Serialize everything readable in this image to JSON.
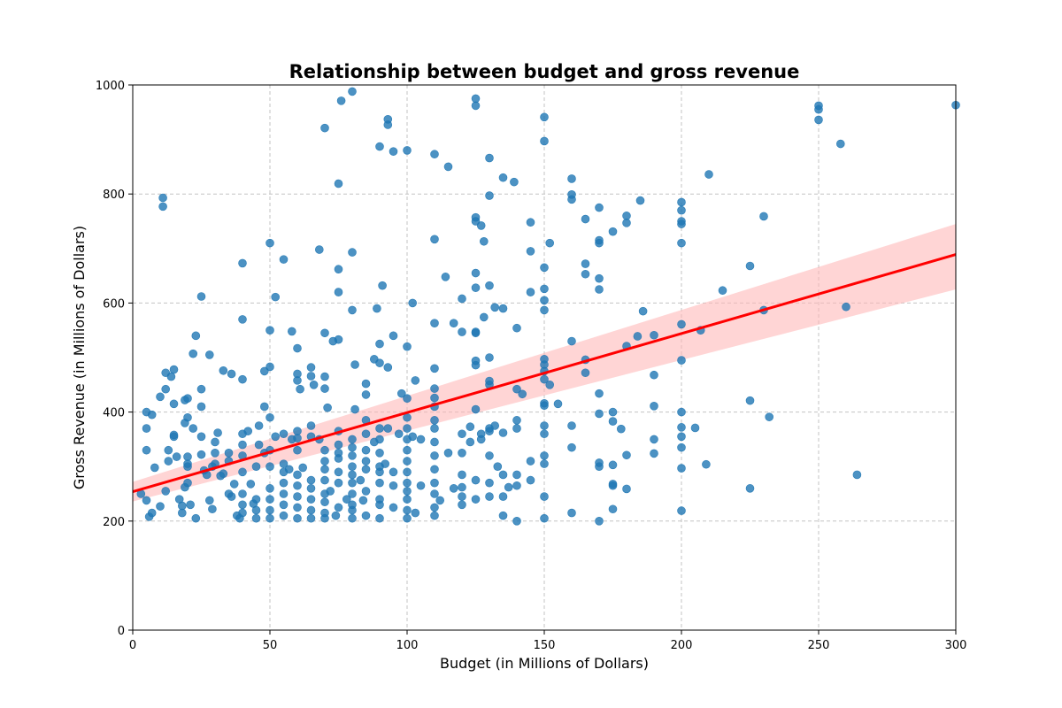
{
  "colors": {
    "points": "#1f77b4",
    "regression_line": "#ff0000",
    "confidence_band": "#ffb3b3",
    "grid": "#b0b0b0",
    "background": "#ffffff"
  },
  "chart_data": {
    "type": "scatter",
    "title": "Relationship between budget and gross revenue",
    "xlabel": "Budget (in Millions of Dollars)",
    "ylabel": "Gross Revenue (in Millions of Dollars)",
    "xlim": [
      0,
      300
    ],
    "ylim": [
      0,
      1000
    ],
    "x_ticks": [
      0,
      50,
      100,
      150,
      200,
      250,
      300
    ],
    "y_ticks": [
      0,
      200,
      400,
      600,
      800,
      1000
    ],
    "grid": true,
    "legend": "none",
    "regression": {
      "x": [
        0,
        300
      ],
      "y": [
        254,
        689
      ],
      "ci_upper": [
        272,
        745
      ],
      "ci_lower": [
        236,
        625
      ]
    },
    "points": [
      [
        11,
        793
      ],
      [
        11,
        777
      ],
      [
        40,
        673
      ],
      [
        25,
        612
      ],
      [
        50,
        710
      ],
      [
        55,
        680
      ],
      [
        52,
        611
      ],
      [
        70,
        921
      ],
      [
        76,
        971
      ],
      [
        80,
        988
      ],
      [
        75,
        819
      ],
      [
        68,
        698
      ],
      [
        80,
        693
      ],
      [
        75,
        662
      ],
      [
        75,
        620
      ],
      [
        80,
        587
      ],
      [
        90,
        887
      ],
      [
        95,
        878
      ],
      [
        93,
        937
      ],
      [
        93,
        927
      ],
      [
        100,
        880
      ],
      [
        91,
        632
      ],
      [
        89,
        590
      ],
      [
        102,
        600
      ],
      [
        110,
        873
      ],
      [
        115,
        850
      ],
      [
        110,
        717
      ],
      [
        114,
        648
      ],
      [
        120,
        608
      ],
      [
        125,
        975
      ],
      [
        125,
        962
      ],
      [
        130,
        866
      ],
      [
        125,
        757
      ],
      [
        125,
        750
      ],
      [
        127,
        742
      ],
      [
        128,
        713
      ],
      [
        125,
        655
      ],
      [
        130,
        632
      ],
      [
        125,
        628
      ],
      [
        130,
        797
      ],
      [
        135,
        830
      ],
      [
        139,
        822
      ],
      [
        145,
        748
      ],
      [
        145,
        695
      ],
      [
        145,
        620
      ],
      [
        150,
        941
      ],
      [
        150,
        897
      ],
      [
        152,
        710
      ],
      [
        150,
        665
      ],
      [
        150,
        626
      ],
      [
        150,
        605
      ],
      [
        150,
        587
      ],
      [
        160,
        828
      ],
      [
        160,
        799
      ],
      [
        160,
        790
      ],
      [
        165,
        754
      ],
      [
        165,
        672
      ],
      [
        165,
        653
      ],
      [
        170,
        775
      ],
      [
        170,
        715
      ],
      [
        170,
        710
      ],
      [
        170,
        645
      ],
      [
        170,
        625
      ],
      [
        175,
        731
      ],
      [
        180,
        760
      ],
      [
        180,
        747
      ],
      [
        185,
        788
      ],
      [
        200,
        785
      ],
      [
        200,
        770
      ],
      [
        200,
        750
      ],
      [
        200,
        745
      ],
      [
        200,
        710
      ],
      [
        210,
        836
      ],
      [
        215,
        623
      ],
      [
        225,
        668
      ],
      [
        230,
        759
      ],
      [
        250,
        962
      ],
      [
        250,
        955
      ],
      [
        250,
        936
      ],
      [
        258,
        892
      ],
      [
        260,
        593
      ],
      [
        300,
        963
      ],
      [
        5,
        400
      ],
      [
        7,
        395
      ],
      [
        5,
        370
      ],
      [
        10,
        428
      ],
      [
        12,
        442
      ],
      [
        12,
        472
      ],
      [
        14,
        465
      ],
      [
        15,
        478
      ],
      [
        15,
        415
      ],
      [
        20,
        425
      ],
      [
        19,
        422
      ],
      [
        22,
        507
      ],
      [
        23,
        540
      ],
      [
        28,
        505
      ],
      [
        25,
        442
      ],
      [
        25,
        410
      ],
      [
        20,
        390
      ],
      [
        19,
        380
      ],
      [
        22,
        370
      ],
      [
        40,
        570
      ],
      [
        40,
        460
      ],
      [
        36,
        470
      ],
      [
        33,
        476
      ],
      [
        48,
        475
      ],
      [
        48,
        410
      ],
      [
        50,
        483
      ],
      [
        50,
        550
      ],
      [
        58,
        548
      ],
      [
        60,
        517
      ],
      [
        60,
        470
      ],
      [
        60,
        458
      ],
      [
        61,
        442
      ],
      [
        65,
        482
      ],
      [
        65,
        466
      ],
      [
        66,
        450
      ],
      [
        70,
        545
      ],
      [
        73,
        530
      ],
      [
        75,
        533
      ],
      [
        70,
        465
      ],
      [
        70,
        443
      ],
      [
        71,
        408
      ],
      [
        81,
        487
      ],
      [
        85,
        452
      ],
      [
        85,
        432
      ],
      [
        88,
        497
      ],
      [
        90,
        525
      ],
      [
        90,
        490
      ],
      [
        93,
        482
      ],
      [
        95,
        540
      ],
      [
        100,
        520
      ],
      [
        98,
        434
      ],
      [
        100,
        425
      ],
      [
        103,
        458
      ],
      [
        110,
        563
      ],
      [
        117,
        563
      ],
      [
        120,
        547
      ],
      [
        110,
        480
      ],
      [
        110,
        443
      ],
      [
        110,
        426
      ],
      [
        110,
        410
      ],
      [
        125,
        545
      ],
      [
        125,
        547
      ],
      [
        128,
        574
      ],
      [
        132,
        592
      ],
      [
        135,
        590
      ],
      [
        140,
        554
      ],
      [
        125,
        494
      ],
      [
        125,
        486
      ],
      [
        130,
        500
      ],
      [
        130,
        457
      ],
      [
        130,
        450
      ],
      [
        140,
        442
      ],
      [
        142,
        433
      ],
      [
        150,
        497
      ],
      [
        150,
        487
      ],
      [
        150,
        475
      ],
      [
        150,
        460
      ],
      [
        152,
        450
      ],
      [
        150,
        416
      ],
      [
        150,
        412
      ],
      [
        155,
        415
      ],
      [
        160,
        530
      ],
      [
        165,
        496
      ],
      [
        165,
        472
      ],
      [
        170,
        434
      ],
      [
        170,
        397
      ],
      [
        175,
        400
      ],
      [
        175,
        383
      ],
      [
        178,
        369
      ],
      [
        180,
        521
      ],
      [
        184,
        539
      ],
      [
        186,
        585
      ],
      [
        190,
        541
      ],
      [
        190,
        468
      ],
      [
        190,
        411
      ],
      [
        200,
        561
      ],
      [
        200,
        495
      ],
      [
        200,
        400
      ],
      [
        200,
        372
      ],
      [
        207,
        550
      ],
      [
        225,
        421
      ],
      [
        230,
        587
      ],
      [
        232,
        391
      ],
      [
        3,
        250
      ],
      [
        5,
        238
      ],
      [
        6,
        208
      ],
      [
        7,
        215
      ],
      [
        8,
        298
      ],
      [
        5,
        330
      ],
      [
        10,
        227
      ],
      [
        12,
        255
      ],
      [
        13,
        310
      ],
      [
        13,
        330
      ],
      [
        15,
        355
      ],
      [
        15,
        358
      ],
      [
        16,
        318
      ],
      [
        17,
        240
      ],
      [
        18,
        228
      ],
      [
        18,
        215
      ],
      [
        19,
        262
      ],
      [
        20,
        270
      ],
      [
        20,
        300
      ],
      [
        20,
        305
      ],
      [
        20,
        318
      ],
      [
        21,
        230
      ],
      [
        23,
        205
      ],
      [
        25,
        355
      ],
      [
        25,
        322
      ],
      [
        26,
        293
      ],
      [
        27,
        285
      ],
      [
        28,
        238
      ],
      [
        29,
        222
      ],
      [
        29,
        300
      ],
      [
        30,
        305
      ],
      [
        30,
        325
      ],
      [
        30,
        345
      ],
      [
        31,
        362
      ],
      [
        32,
        283
      ],
      [
        33,
        287
      ],
      [
        35,
        325
      ],
      [
        35,
        310
      ],
      [
        35,
        250
      ],
      [
        36,
        245
      ],
      [
        37,
        268
      ],
      [
        38,
        210
      ],
      [
        39,
        205
      ],
      [
        40,
        215
      ],
      [
        40,
        230
      ],
      [
        40,
        250
      ],
      [
        40,
        290
      ],
      [
        40,
        320
      ],
      [
        40,
        340
      ],
      [
        40,
        360
      ],
      [
        42,
        365
      ],
      [
        43,
        268
      ],
      [
        44,
        232
      ],
      [
        45,
        205
      ],
      [
        45,
        220
      ],
      [
        45,
        240
      ],
      [
        45,
        300
      ],
      [
        46,
        340
      ],
      [
        46,
        375
      ],
      [
        48,
        325
      ],
      [
        50,
        205
      ],
      [
        50,
        220
      ],
      [
        50,
        240
      ],
      [
        50,
        260
      ],
      [
        50,
        300
      ],
      [
        50,
        330
      ],
      [
        50,
        390
      ],
      [
        52,
        355
      ],
      [
        55,
        210
      ],
      [
        55,
        230
      ],
      [
        55,
        250
      ],
      [
        55,
        270
      ],
      [
        55,
        290
      ],
      [
        55,
        305
      ],
      [
        55,
        360
      ],
      [
        57,
        295
      ],
      [
        58,
        350
      ],
      [
        60,
        205
      ],
      [
        60,
        225
      ],
      [
        60,
        245
      ],
      [
        60,
        265
      ],
      [
        60,
        285
      ],
      [
        60,
        330
      ],
      [
        60,
        352
      ],
      [
        60,
        365
      ],
      [
        62,
        298
      ],
      [
        65,
        205
      ],
      [
        65,
        220
      ],
      [
        65,
        240
      ],
      [
        65,
        260
      ],
      [
        65,
        275
      ],
      [
        65,
        355
      ],
      [
        65,
        375
      ],
      [
        68,
        350
      ],
      [
        70,
        205
      ],
      [
        70,
        215
      ],
      [
        70,
        235
      ],
      [
        70,
        250
      ],
      [
        70,
        275
      ],
      [
        70,
        295
      ],
      [
        70,
        310
      ],
      [
        70,
        330
      ],
      [
        72,
        255
      ],
      [
        74,
        210
      ],
      [
        75,
        225
      ],
      [
        75,
        270
      ],
      [
        75,
        290
      ],
      [
        75,
        315
      ],
      [
        75,
        325
      ],
      [
        75,
        340
      ],
      [
        75,
        365
      ],
      [
        78,
        240
      ],
      [
        80,
        205
      ],
      [
        80,
        220
      ],
      [
        80,
        230
      ],
      [
        80,
        250
      ],
      [
        80,
        270
      ],
      [
        80,
        285
      ],
      [
        80,
        300
      ],
      [
        80,
        320
      ],
      [
        80,
        335
      ],
      [
        80,
        350
      ],
      [
        81,
        405
      ],
      [
        83,
        275
      ],
      [
        84,
        238
      ],
      [
        85,
        210
      ],
      [
        85,
        255
      ],
      [
        85,
        295
      ],
      [
        85,
        310
      ],
      [
        85,
        330
      ],
      [
        85,
        360
      ],
      [
        85,
        385
      ],
      [
        88,
        345
      ],
      [
        90,
        205
      ],
      [
        90,
        230
      ],
      [
        90,
        240
      ],
      [
        90,
        270
      ],
      [
        90,
        290
      ],
      [
        90,
        300
      ],
      [
        90,
        325
      ],
      [
        90,
        350
      ],
      [
        90,
        370
      ],
      [
        92,
        305
      ],
      [
        93,
        370
      ],
      [
        95,
        225
      ],
      [
        95,
        265
      ],
      [
        95,
        290
      ],
      [
        97,
        360
      ],
      [
        100,
        205
      ],
      [
        100,
        220
      ],
      [
        100,
        240
      ],
      [
        100,
        255
      ],
      [
        100,
        270
      ],
      [
        100,
        290
      ],
      [
        100,
        310
      ],
      [
        100,
        330
      ],
      [
        100,
        350
      ],
      [
        100,
        370
      ],
      [
        100,
        390
      ],
      [
        102,
        355
      ],
      [
        103,
        215
      ],
      [
        105,
        265
      ],
      [
        105,
        350
      ],
      [
        110,
        210
      ],
      [
        110,
        225
      ],
      [
        110,
        250
      ],
      [
        110,
        270
      ],
      [
        110,
        295
      ],
      [
        110,
        320
      ],
      [
        110,
        345
      ],
      [
        110,
        370
      ],
      [
        110,
        385
      ],
      [
        112,
        238
      ],
      [
        115,
        325
      ],
      [
        117,
        260
      ],
      [
        120,
        230
      ],
      [
        120,
        245
      ],
      [
        120,
        262
      ],
      [
        120,
        285
      ],
      [
        120,
        325
      ],
      [
        120,
        360
      ],
      [
        123,
        345
      ],
      [
        123,
        373
      ],
      [
        125,
        240
      ],
      [
        125,
        275
      ],
      [
        125,
        405
      ],
      [
        127,
        350
      ],
      [
        127,
        360
      ],
      [
        130,
        245
      ],
      [
        130,
        270
      ],
      [
        130,
        320
      ],
      [
        130,
        365
      ],
      [
        130,
        370
      ],
      [
        132,
        375
      ],
      [
        133,
        300
      ],
      [
        135,
        210
      ],
      [
        135,
        245
      ],
      [
        135,
        285
      ],
      [
        135,
        362
      ],
      [
        137,
        262
      ],
      [
        140,
        200
      ],
      [
        140,
        265
      ],
      [
        140,
        285
      ],
      [
        140,
        370
      ],
      [
        140,
        385
      ],
      [
        145,
        275
      ],
      [
        145,
        310
      ],
      [
        150,
        205
      ],
      [
        150,
        245
      ],
      [
        150,
        305
      ],
      [
        150,
        320
      ],
      [
        150,
        360
      ],
      [
        150,
        375
      ],
      [
        160,
        215
      ],
      [
        160,
        335
      ],
      [
        160,
        375
      ],
      [
        170,
        200
      ],
      [
        170,
        300
      ],
      [
        170,
        307
      ],
      [
        175,
        222
      ],
      [
        175,
        265
      ],
      [
        175,
        268
      ],
      [
        175,
        303
      ],
      [
        180,
        259
      ],
      [
        180,
        321
      ],
      [
        190,
        324
      ],
      [
        190,
        350
      ],
      [
        200,
        219
      ],
      [
        200,
        297
      ],
      [
        200,
        335
      ],
      [
        200,
        355
      ],
      [
        205,
        371
      ],
      [
        209,
        304
      ],
      [
        225,
        260
      ],
      [
        264,
        285
      ]
    ]
  }
}
